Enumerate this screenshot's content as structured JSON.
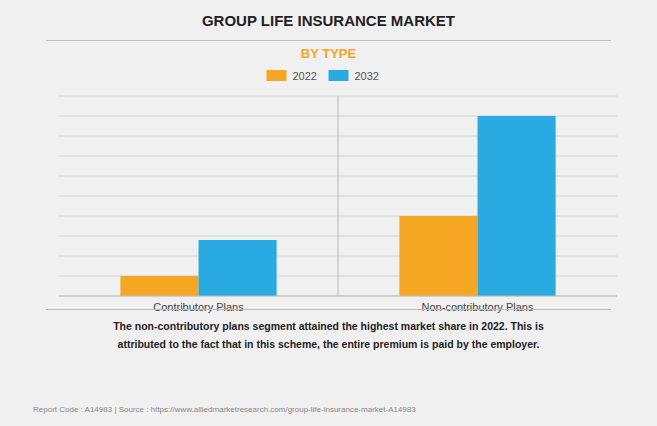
{
  "chart_data": {
    "type": "bar",
    "title": "GROUP LIFE INSURANCE MARKET",
    "subtitle": "BY TYPE",
    "categories": [
      "Contributory Plans",
      "Non-contributory Plans"
    ],
    "series": [
      {
        "name": "2022",
        "color": "#F5A623",
        "values": [
          1.0,
          4.0
        ]
      },
      {
        "name": "2032",
        "color": "#29ABE2",
        "values": [
          2.8,
          9.0
        ]
      }
    ],
    "ylim": [
      0,
      10
    ],
    "yticks": [
      0,
      1,
      2,
      3,
      4,
      5,
      6,
      7,
      8,
      9,
      10
    ],
    "grid": true,
    "legend": "top",
    "tick_labels": "x",
    "annotations": [
      "The non-contributory plans segment attained the highest market share in 2022. This is\nattributed to the fact that in this scheme, the entire premium is paid by the employer.",
      "Report Code : A14983  |  Source : https://www.alliedmarketresearch.com/group-life-insurance-market-A14983"
    ]
  }
}
